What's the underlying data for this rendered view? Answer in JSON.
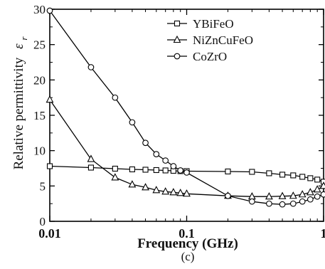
{
  "chart_data": {
    "type": "line",
    "xlabel": "Frequency (GHz)",
    "ylabel": "Relative permittivity",
    "ylabel_symbol": "ε",
    "ylabel_subscript": "r",
    "caption": "(c)",
    "x_scale": "log",
    "xlim": [
      0.01,
      1
    ],
    "ylim": [
      0,
      30
    ],
    "x_ticks": [
      0.01,
      0.1,
      1
    ],
    "x_tick_labels": [
      "0.01",
      "0.1",
      "1"
    ],
    "y_ticks": [
      0,
      5,
      10,
      15,
      20,
      25,
      30
    ],
    "y_tick_labels": [
      "0",
      "5",
      "10",
      "15",
      "20",
      "25",
      "30"
    ],
    "grid": false,
    "legend_position": "top-right",
    "series": [
      {
        "name": "YBiFeO",
        "marker": "square",
        "x": [
          0.01,
          0.02,
          0.03,
          0.04,
          0.05,
          0.06,
          0.07,
          0.08,
          0.09,
          0.1,
          0.2,
          0.3,
          0.4,
          0.5,
          0.6,
          0.7,
          0.8,
          0.9,
          1.0
        ],
        "y": [
          7.8,
          7.6,
          7.45,
          7.35,
          7.3,
          7.25,
          7.2,
          7.15,
          7.1,
          7.1,
          7.05,
          7.0,
          6.8,
          6.6,
          6.5,
          6.3,
          6.1,
          5.9,
          5.6
        ]
      },
      {
        "name": "NiZnCuFeO",
        "marker": "triangle",
        "x": [
          0.01,
          0.02,
          0.03,
          0.04,
          0.05,
          0.06,
          0.07,
          0.08,
          0.09,
          0.1,
          0.2,
          0.3,
          0.4,
          0.5,
          0.6,
          0.7,
          0.8,
          0.9,
          1.0
        ],
        "y": [
          17.2,
          8.8,
          6.2,
          5.2,
          4.8,
          4.4,
          4.2,
          4.1,
          4.0,
          3.9,
          3.6,
          3.5,
          3.5,
          3.55,
          3.6,
          3.8,
          4.1,
          4.5,
          5.0
        ]
      },
      {
        "name": "CoZrO",
        "marker": "circle",
        "x": [
          0.01,
          0.02,
          0.03,
          0.04,
          0.05,
          0.06,
          0.07,
          0.08,
          0.09,
          0.1,
          0.2,
          0.3,
          0.4,
          0.5,
          0.6,
          0.7,
          0.8,
          0.9,
          1.0
        ],
        "y": [
          29.8,
          21.8,
          17.5,
          14.0,
          11.1,
          9.5,
          8.6,
          7.8,
          7.2,
          6.9,
          3.6,
          2.8,
          2.5,
          2.4,
          2.5,
          2.8,
          3.1,
          3.5,
          3.8
        ]
      }
    ]
  }
}
